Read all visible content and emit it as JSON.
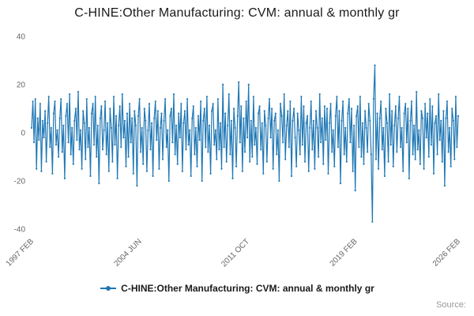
{
  "title": "C-HINE:Other Manufacturing: CVM: annual & monthly gr",
  "legend": {
    "label": "C-HINE:Other Manufacturing: CVM: annual & monthly gr"
  },
  "source_label": "Source:",
  "colors": {
    "line": "#1f77b4",
    "axis_labels": "#666666",
    "title": "#1a1a1a",
    "source": "#999999"
  },
  "chart_data": {
    "type": "line",
    "title": "C-HINE:Other Manufacturing: CVM: annual & monthly gr",
    "series_name": "C-HINE:Other Manufacturing: CVM: annual & monthly gr",
    "frequency": "monthly",
    "x_start": "1997 FEB",
    "x_end": "2026 FEB",
    "x_tick_labels": [
      "1997 FEB",
      "2004 JUN",
      "2011 OCT",
      "2019 FEB",
      "2026 FEB"
    ],
    "x_tick_indices": [
      0,
      88,
      176,
      264,
      348
    ],
    "y_ticks": [
      -40,
      -20,
      0,
      20,
      40
    ],
    "ylim": [
      -40,
      40
    ],
    "grid": false,
    "legend_position": "bottom",
    "line_color": "#1f77b4",
    "values": [
      2,
      13,
      -4,
      14,
      -15,
      6,
      -3,
      12,
      -16,
      5,
      -2,
      9,
      -12,
      4,
      15,
      -6,
      2,
      -17,
      8,
      13,
      -5,
      1,
      -10,
      6,
      14,
      -8,
      3,
      -19,
      7,
      12,
      -4,
      16,
      -9,
      2,
      -13,
      5,
      10,
      -3,
      17,
      -7,
      1,
      -15,
      9,
      4,
      -11,
      14,
      -6,
      2,
      -18,
      8,
      12,
      -5,
      15,
      -10,
      3,
      -21,
      6,
      11,
      -7,
      1,
      13,
      -9,
      4,
      -16,
      10,
      2,
      -12,
      15,
      -5,
      7,
      -19,
      3,
      11,
      -6,
      16,
      -2,
      5,
      -14,
      8,
      -10,
      12,
      -4,
      6,
      -17,
      9,
      3,
      -22,
      7,
      14,
      -8,
      2,
      -13,
      10,
      5,
      -16,
      1,
      12,
      -7,
      4,
      -18,
      6,
      13,
      -3,
      9,
      -15,
      2,
      8,
      -11,
      5,
      14,
      -6,
      1,
      -20,
      7,
      10,
      -4,
      16,
      -9,
      3,
      -13,
      8,
      -2,
      12,
      -16,
      4,
      9,
      -7,
      14,
      -5,
      1,
      -18,
      6,
      11,
      -9,
      2,
      -14,
      7,
      -3,
      13,
      -20,
      5,
      10,
      -6,
      15,
      -8,
      3,
      -17,
      9,
      12,
      -5,
      1,
      -11,
      14,
      -7,
      4,
      -15,
      20,
      -6,
      8,
      -12,
      3,
      16,
      -9,
      5,
      -19,
      10,
      2,
      -14,
      7,
      21,
      -4,
      11,
      -16,
      6,
      -8,
      13,
      -2,
      20,
      -12,
      5,
      -10,
      15,
      -5,
      2,
      -13,
      8,
      11,
      -7,
      4,
      -17,
      9,
      3,
      -12,
      6,
      14,
      -2,
      10,
      -15,
      5,
      8,
      -9,
      1,
      -20,
      12,
      7,
      -4,
      16,
      -11,
      3,
      9,
      -6,
      13,
      -18,
      5,
      10,
      -2,
      -14,
      8,
      1,
      -9,
      15,
      -5,
      11,
      -12,
      4,
      7,
      -16,
      2,
      13,
      -7,
      5,
      -15,
      9,
      2,
      -10,
      16,
      -4,
      6,
      -13,
      11,
      -3,
      10,
      -17,
      4,
      12,
      -8,
      1,
      -14,
      7,
      15,
      -6,
      9,
      -21,
      5,
      13,
      -9,
      2,
      -12,
      8,
      14,
      -4,
      10,
      -16,
      3,
      -24,
      7,
      11,
      -6,
      15,
      -10,
      4,
      -13,
      9,
      2,
      -8,
      12,
      5,
      -9,
      -37,
      14,
      28,
      -11,
      8,
      -15,
      6,
      13,
      -7,
      2,
      -18,
      10,
      4,
      -12,
      16,
      -5,
      9,
      -14,
      3,
      11,
      -8,
      6,
      15,
      -6,
      2,
      -16,
      8,
      12,
      -4,
      10,
      -19,
      5,
      13,
      -9,
      3,
      -11,
      17,
      -7,
      1,
      -13,
      9,
      6,
      -15,
      12,
      -2,
      8,
      -10,
      14,
      -5,
      11,
      -17,
      4,
      7,
      -9,
      16,
      -3,
      5,
      -12,
      9,
      -22,
      6,
      13,
      -8,
      2,
      -14,
      10,
      5,
      -11,
      15,
      -6,
      7
    ]
  }
}
